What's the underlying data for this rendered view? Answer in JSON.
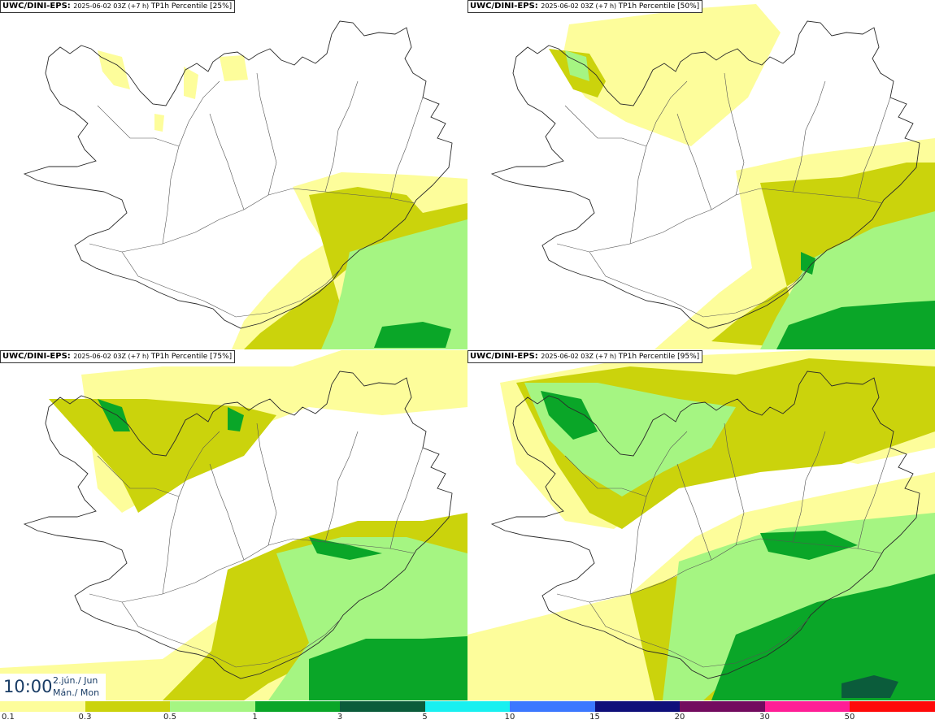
{
  "panels": [
    {
      "model": "UWC/DINI-EPS",
      "run": "2025-06-02 03Z",
      "lead": "(+7 h)",
      "param": "TP1h Percentile [25%]",
      "level": 0
    },
    {
      "model": "UWC/DINI-EPS",
      "run": "2025-06-02 03Z",
      "lead": "(+7 h)",
      "param": "TP1h Percentile [50%]",
      "level": 1
    },
    {
      "model": "UWC/DINI-EPS",
      "run": "2025-06-02 03Z",
      "lead": "(+7 h)",
      "param": "TP1h Percentile [75%]",
      "level": 2
    },
    {
      "model": "UWC/DINI-EPS",
      "run": "2025-06-02 03Z",
      "lead": "(+7 h)",
      "param": "TP1h Percentile [95%]",
      "level": 3
    }
  ],
  "valid_time": {
    "time": "10:00",
    "date_line1": "2.jún./ Jun",
    "date_line2": "Mán./ Mon"
  },
  "legend": {
    "bins": [
      {
        "from": "0.1",
        "color": "#fdfd9b"
      },
      {
        "from": "0.3",
        "color": "#cbd30c"
      },
      {
        "from": "0.5",
        "color": "#a5f582"
      },
      {
        "from": "1",
        "color": "#0aa628"
      },
      {
        "from": "3",
        "color": "#0b5c3b"
      },
      {
        "from": "5",
        "color": "#19f0f0"
      },
      {
        "from": "10",
        "color": "#3c78ff"
      },
      {
        "from": "15",
        "color": "#0f0f7a"
      },
      {
        "from": "20",
        "color": "#730b5f"
      },
      {
        "from": "30",
        "color": "#ff1e96"
      },
      {
        "from": "50",
        "color": "#ff0a0a"
      }
    ]
  }
}
